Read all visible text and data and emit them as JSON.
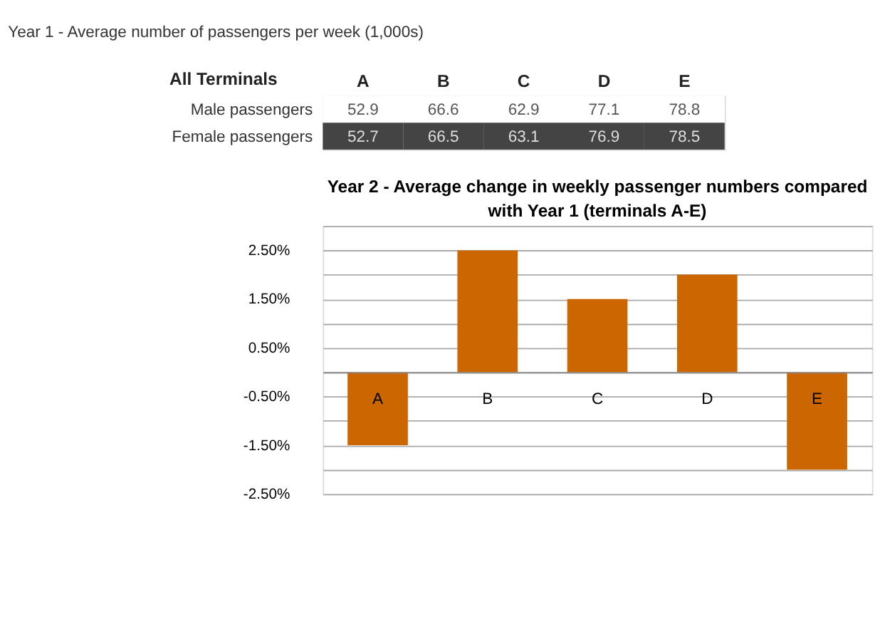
{
  "chart_data": [
    {
      "type": "heatmap",
      "title": "Year 1 - Average number of passengers per week (1,000s)",
      "ylabel": "All Terminals",
      "categories": [
        "A",
        "B",
        "C",
        "D",
        "E"
      ],
      "y_categories": [
        "Male passengers",
        "Female passengers"
      ],
      "cells": [
        [
          52.9,
          66.6,
          62.9,
          77.1,
          78.8
        ],
        [
          52.7,
          66.5,
          63.1,
          76.9,
          78.5
        ]
      ],
      "data_labels": true
    },
    {
      "type": "bar",
      "title": "Year 2 - Average change in weekly passenger numbers compared with Year 1 (terminals A-E)",
      "categories": [
        "A",
        "B",
        "C",
        "D",
        "E"
      ],
      "values": [
        -1.5,
        2.5,
        1.5,
        2.0,
        -2.0
      ],
      "color": "#cc6600",
      "ylim": [
        -2.5,
        3.0
      ],
      "yticks": [
        {
          "value": -2.5,
          "label": "-2.50%"
        },
        {
          "value": -2.0,
          "label": null
        },
        {
          "value": -1.5,
          "label": "-1.50%"
        },
        {
          "value": -1.0,
          "label": null
        },
        {
          "value": -0.5,
          "label": "-0.50%"
        },
        {
          "value": 0.0,
          "label": null
        },
        {
          "value": 0.5,
          "label": "0.50%"
        },
        {
          "value": 1.0,
          "label": null
        },
        {
          "value": 1.5,
          "label": "1.50%"
        },
        {
          "value": 2.0,
          "label": null
        },
        {
          "value": 2.5,
          "label": "2.50%"
        },
        {
          "value": 3.0,
          "label": null
        }
      ],
      "grid": "y"
    }
  ]
}
